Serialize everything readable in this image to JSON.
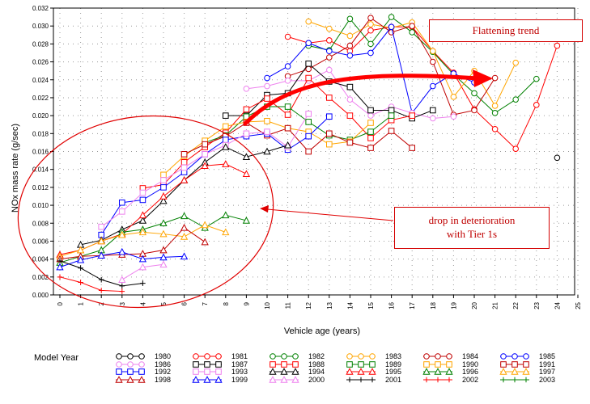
{
  "chart_data": {
    "type": "line",
    "xlabel": "Vehicle age (years)",
    "ylabel": "NOx mass rate (g/sec)",
    "x_ticks": [
      "0",
      "1",
      "2",
      "3",
      "4",
      "5",
      "6",
      "7",
      "8",
      "9",
      "10",
      "11",
      "12",
      "13",
      "14",
      "15",
      "16",
      "17",
      "18",
      "19",
      "20",
      "21",
      "22",
      "23",
      "24",
      "25"
    ],
    "y_ticks": [
      "0.000",
      "0.002",
      "0.004",
      "0.006",
      "0.008",
      "0.010",
      "0.012",
      "0.014",
      "0.016",
      "0.018",
      "0.020",
      "0.022",
      "0.024",
      "0.026",
      "0.028",
      "0.030",
      "0.032"
    ],
    "xlim": [
      0,
      25
    ],
    "ylim": [
      0,
      0.032
    ],
    "grid": "dotted",
    "legend_title": "Model Year",
    "legend_position": "bottom",
    "series": [
      {
        "name": "1980",
        "color": "#000000",
        "marker": "circle",
        "x": [
          24
        ],
        "y": [
          0.0153
        ]
      },
      {
        "name": "1981",
        "color": "#ff0000",
        "marker": "circle",
        "x": [
          11,
          12,
          13,
          14,
          15,
          16,
          17,
          18,
          19,
          20,
          21,
          22,
          23,
          24
        ],
        "y": [
          0.0288,
          0.0281,
          0.0284,
          0.0272,
          0.0295,
          0.0299,
          0.0299,
          0.0272,
          0.0248,
          0.0207,
          0.0185,
          0.0163,
          0.0212,
          0.0278
        ]
      },
      {
        "name": "1982",
        "color": "#008000",
        "marker": "circle",
        "x": [
          12,
          13,
          14,
          15,
          16,
          17,
          18,
          19,
          20,
          21,
          22,
          23
        ],
        "y": [
          0.0278,
          0.0273,
          0.0308,
          0.028,
          0.031,
          0.0293,
          0.0271,
          0.0246,
          0.0225,
          0.0203,
          0.0218,
          0.0241
        ]
      },
      {
        "name": "1983",
        "color": "#ffa500",
        "marker": "circle",
        "x": [
          12,
          13,
          14,
          15,
          16,
          17,
          18,
          19,
          20,
          21,
          22
        ],
        "y": [
          0.0305,
          0.0297,
          0.0289,
          0.0302,
          0.0298,
          0.0304,
          0.0272,
          0.0221,
          0.025,
          0.0211,
          0.0259
        ]
      },
      {
        "name": "1984",
        "color": "#c00000",
        "marker": "circle",
        "x": [
          11,
          12,
          13,
          14,
          15,
          16,
          17,
          18,
          19,
          20,
          21
        ],
        "y": [
          0.0244,
          0.0252,
          0.0265,
          0.0278,
          0.0309,
          0.0293,
          0.03,
          0.026,
          0.0201,
          0.0206,
          0.0242
        ]
      },
      {
        "name": "1985",
        "color": "#0000ff",
        "marker": "circle",
        "x": [
          10,
          11,
          12,
          13,
          14,
          15,
          16,
          17,
          18,
          19,
          20
        ],
        "y": [
          0.0242,
          0.0255,
          0.0281,
          0.0272,
          0.0267,
          0.027,
          0.0299,
          0.0203,
          0.0233,
          0.0247,
          0.0237
        ]
      },
      {
        "name": "1986",
        "color": "#ee82ee",
        "marker": "circle",
        "x": [
          9,
          10,
          11,
          12,
          13,
          14,
          15,
          16,
          17,
          18,
          19
        ],
        "y": [
          0.023,
          0.0233,
          0.0239,
          0.0239,
          0.0251,
          0.0218,
          0.02,
          0.021,
          0.0203,
          0.0197,
          0.0199
        ]
      },
      {
        "name": "1987",
        "color": "#000000",
        "marker": "square",
        "x": [
          8,
          9,
          10,
          11,
          12,
          13,
          14,
          15,
          16,
          17,
          18
        ],
        "y": [
          0.02,
          0.02,
          0.0223,
          0.0225,
          0.0258,
          0.0238,
          0.0232,
          0.0206,
          0.0206,
          0.0197,
          0.0206
        ]
      },
      {
        "name": "1988",
        "color": "#ff0000",
        "marker": "square",
        "x": [
          4,
          5,
          6,
          7,
          8,
          9,
          10,
          11,
          12,
          13,
          14,
          15,
          16,
          17
        ],
        "y": [
          0.0119,
          0.0123,
          0.0148,
          0.0165,
          0.0181,
          0.0207,
          0.0219,
          0.0201,
          0.0242,
          0.022,
          0.02,
          0.0175,
          0.0195,
          0.02
        ]
      },
      {
        "name": "1989",
        "color": "#008000",
        "marker": "square",
        "x": [
          7,
          8,
          9,
          10,
          11,
          12,
          13,
          14,
          15,
          16
        ],
        "y": [
          0.017,
          0.0178,
          0.0199,
          0.021,
          0.021,
          0.0193,
          0.0178,
          0.0173,
          0.0182,
          0.02
        ]
      },
      {
        "name": "1990",
        "color": "#ffa500",
        "marker": "square",
        "x": [
          5,
          6,
          7,
          8,
          9,
          10,
          11,
          12,
          13,
          14,
          15
        ],
        "y": [
          0.0134,
          0.0155,
          0.0172,
          0.0188,
          0.0193,
          0.0194,
          0.0186,
          0.0182,
          0.0168,
          0.0171,
          0.0192
        ]
      },
      {
        "name": "1991",
        "color": "#c00000",
        "marker": "square",
        "x": [
          6,
          7,
          8,
          9,
          10,
          11,
          12,
          13,
          14,
          15,
          16,
          17
        ],
        "y": [
          0.0157,
          0.0168,
          0.0177,
          0.0192,
          0.0178,
          0.0186,
          0.016,
          0.018,
          0.017,
          0.0164,
          0.0183,
          0.0164
        ]
      },
      {
        "name": "1992",
        "color": "#0000ff",
        "marker": "square",
        "x": [
          2,
          3,
          4,
          5,
          6,
          7,
          8,
          9,
          10,
          11,
          12,
          13
        ],
        "y": [
          0.0067,
          0.0103,
          0.0106,
          0.012,
          0.0137,
          0.0157,
          0.0173,
          0.0177,
          0.018,
          0.0162,
          0.0177,
          0.0199
        ]
      },
      {
        "name": "1993",
        "color": "#ee82ee",
        "marker": "square",
        "x": [
          2,
          3,
          4,
          5,
          6,
          7,
          8,
          9,
          10,
          11,
          12
        ],
        "y": [
          0.0076,
          0.0093,
          0.0114,
          0.0128,
          0.0142,
          0.0157,
          0.0167,
          0.018,
          0.0182,
          0.0165,
          0.0202
        ]
      },
      {
        "name": "1994",
        "color": "#000000",
        "marker": "triangle",
        "x": [
          1,
          2,
          3,
          4,
          5,
          6,
          7,
          8,
          9,
          10,
          11
        ],
        "y": [
          0.0056,
          0.0061,
          0.0073,
          0.0083,
          0.0105,
          0.0128,
          0.0148,
          0.0165,
          0.0154,
          0.016,
          0.0167
        ]
      },
      {
        "name": "1995",
        "color": "#ff0000",
        "marker": "triangle",
        "x": [
          0,
          1,
          2,
          3,
          4,
          5,
          6,
          7,
          8,
          9
        ],
        "y": [
          0.0045,
          0.005,
          0.006,
          0.0068,
          0.0089,
          0.011,
          0.0128,
          0.0144,
          0.0146,
          0.0135
        ]
      },
      {
        "name": "1996",
        "color": "#008000",
        "marker": "triangle",
        "x": [
          0,
          1,
          2,
          3,
          4,
          5,
          6,
          7,
          8,
          9
        ],
        "y": [
          0.0036,
          0.0043,
          0.005,
          0.007,
          0.0073,
          0.008,
          0.0088,
          0.0075,
          0.0089,
          0.0083
        ]
      },
      {
        "name": "1997",
        "color": "#ffa500",
        "marker": "triangle",
        "x": [
          0,
          1,
          2,
          3,
          4,
          5,
          6,
          7,
          8
        ],
        "y": [
          0.0043,
          0.005,
          0.006,
          0.0067,
          0.007,
          0.0068,
          0.0065,
          0.0078,
          0.007
        ]
      },
      {
        "name": "1998",
        "color": "#c00000",
        "marker": "triangle",
        "x": [
          0,
          1,
          2,
          3,
          4,
          5,
          6,
          7
        ],
        "y": [
          0.004,
          0.0043,
          0.0044,
          0.0045,
          0.0046,
          0.005,
          0.0075,
          0.0059
        ]
      },
      {
        "name": "1999",
        "color": "#0000ff",
        "marker": "triangle",
        "x": [
          0,
          1,
          2,
          3,
          4,
          5,
          6
        ],
        "y": [
          0.0031,
          0.0039,
          0.0044,
          0.0048,
          0.004,
          0.0042,
          0.0043
        ]
      },
      {
        "name": "2000",
        "color": "#ee82ee",
        "marker": "triangle",
        "x": [
          3,
          4,
          5
        ],
        "y": [
          0.0017,
          0.0031,
          0.0034
        ]
      },
      {
        "name": "2001",
        "color": "#000000",
        "marker": "plus",
        "x": [
          0,
          1,
          2,
          3,
          4
        ],
        "y": [
          0.0038,
          0.003,
          0.0017,
          0.001,
          0.0013
        ]
      },
      {
        "name": "2002",
        "color": "#ff0000",
        "marker": "plus",
        "x": [
          0,
          1,
          2,
          3
        ],
        "y": [
          0.002,
          0.0014,
          0.0005,
          0.0004
        ]
      },
      {
        "name": "2003",
        "color": "#008000",
        "marker": "plus",
        "x": [],
        "y": []
      }
    ],
    "annotations": [
      {
        "text": "Flattening trend",
        "style": "red box, with curved red arrow"
      },
      {
        "text": "drop in deterioration\nwith Tier 1s",
        "style": "red box, with arrow pointing left"
      }
    ]
  },
  "annotations": {
    "flattening": "Flattening trend",
    "drop_line1": "drop in deterioration",
    "drop_line2": "with Tier 1s"
  }
}
